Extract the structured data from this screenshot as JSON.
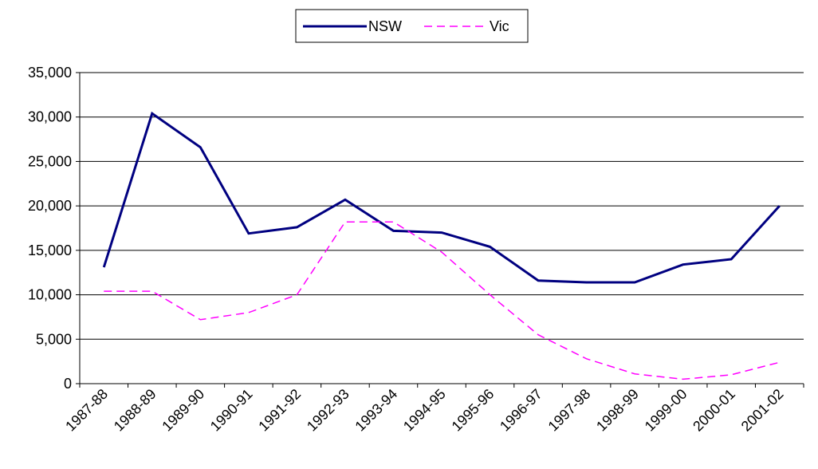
{
  "chart_data": {
    "type": "line",
    "categories": [
      "1987-88",
      "1988-89",
      "1989-90",
      "1990-91",
      "1991-92",
      "1992-93",
      "1993-94",
      "1994-95",
      "1995-96",
      "1996-97",
      "1997-98",
      "1998-99",
      "1999-00",
      "2000-01",
      "2001-02"
    ],
    "series": [
      {
        "name": "NSW",
        "color": "#000080",
        "dash": false,
        "values": [
          13100,
          30400,
          26600,
          16900,
          17600,
          20700,
          17200,
          17000,
          15400,
          11600,
          11400,
          11400,
          13400,
          14000,
          20000
        ]
      },
      {
        "name": "Vic",
        "color": "#ff00ff",
        "dash": true,
        "values": [
          10400,
          10400,
          7200,
          8000,
          10000,
          18200,
          18200,
          14800,
          10000,
          5500,
          2800,
          1100,
          500,
          1000,
          2400
        ]
      }
    ],
    "ylim": [
      0,
      35000
    ],
    "yticks": [
      0,
      {
        "value": 5000,
        "label": "5,000"
      },
      {
        "value": 10000,
        "label": "10,000"
      },
      {
        "value": 15000,
        "label": "15,000"
      },
      {
        "value": 20000,
        "label": "20,000"
      },
      {
        "value": 25000,
        "label": "25,000"
      },
      {
        "value": 30000,
        "label": "30,000"
      },
      {
        "value": 35000,
        "label": "35,000"
      }
    ],
    "grid": true,
    "legend": "top"
  }
}
